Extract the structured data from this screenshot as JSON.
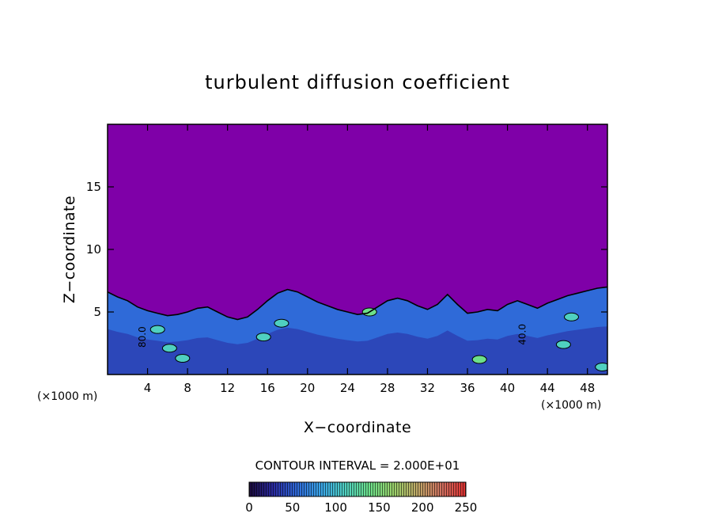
{
  "chart_data": {
    "type": "heatmap",
    "title": "turbulent diffusion coefficient",
    "xlabel": "X−coordinate",
    "ylabel": "Z−coordinate",
    "x_unit_left": "(×1000 m)",
    "x_unit_right": "(×1000 m)",
    "xlim": [
      0,
      50
    ],
    "ylim": [
      0,
      20
    ],
    "x_ticks": [
      4,
      8,
      12,
      16,
      20,
      24,
      28,
      32,
      36,
      40,
      44,
      48
    ],
    "y_ticks": [
      5,
      10,
      15
    ],
    "contour_interval_label": "CONTOUR INTERVAL = 2.000E+01",
    "contour_interval": 20,
    "colorbar": {
      "range": [
        0,
        250
      ],
      "ticks": [
        0,
        50,
        100,
        150,
        200,
        250
      ],
      "colors": [
        "#1a0a3a",
        "#2a2aa0",
        "#2f6ad8",
        "#3aa6e8",
        "#4fd0c0",
        "#6de08a",
        "#9ad06a",
        "#c0a868",
        "#d07060",
        "#e03030"
      ]
    },
    "background_value": 0,
    "background_color": "#7f00a8",
    "boundary_layer_top": [
      6.6,
      6.2,
      5.9,
      5.4,
      5.1,
      4.9,
      4.7,
      4.8,
      5.0,
      5.3,
      5.4,
      5.0,
      4.6,
      4.4,
      4.6,
      5.2,
      5.9,
      6.5,
      6.8,
      6.6,
      6.2,
      5.8,
      5.5,
      5.2,
      5.0,
      4.8,
      4.9,
      5.4,
      5.9,
      6.1,
      5.9,
      5.5,
      5.2,
      5.6,
      6.4,
      5.6,
      4.9,
      5.0,
      5.2,
      5.1,
      5.6,
      5.9,
      5.6,
      5.3,
      5.7,
      6.0,
      6.3,
      6.5,
      6.7,
      6.9,
      7.0
    ],
    "annotations": [
      "80.0",
      "40.0"
    ],
    "annotation_positions": [
      [
        3.8,
        3.0
      ],
      [
        41.8,
        3.2
      ]
    ],
    "strong_patches": [
      {
        "x": 5.0,
        "z": 3.6,
        "value": 120
      },
      {
        "x": 6.2,
        "z": 2.1,
        "value": 110
      },
      {
        "x": 7.5,
        "z": 1.3,
        "value": 100
      },
      {
        "x": 15.6,
        "z": 3.0,
        "value": 110
      },
      {
        "x": 17.4,
        "z": 4.1,
        "value": 100
      },
      {
        "x": 26.2,
        "z": 5.0,
        "value": 130
      },
      {
        "x": 37.2,
        "z": 1.2,
        "value": 130
      },
      {
        "x": 45.6,
        "z": 2.4,
        "value": 110
      },
      {
        "x": 46.4,
        "z": 4.6,
        "value": 110
      },
      {
        "x": 49.5,
        "z": 0.6,
        "value": 120
      }
    ]
  }
}
